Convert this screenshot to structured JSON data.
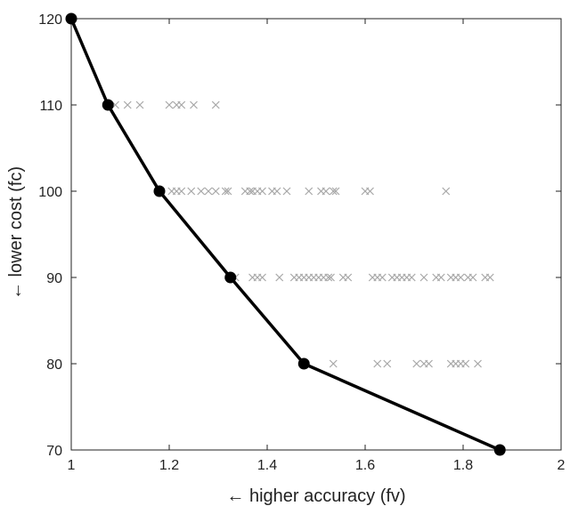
{
  "chart_data": {
    "type": "scatter",
    "title": "",
    "xlabel": "← higher accuracy (fv)",
    "ylabel": "← lower cost (fc)",
    "xlim": [
      1,
      2
    ],
    "ylim": [
      70,
      120
    ],
    "xticks": [
      1,
      1.2,
      1.4,
      1.6,
      1.8,
      2
    ],
    "xtick_labels": [
      "1",
      "1.2",
      "1.4",
      "1.6",
      "1.8",
      "2"
    ],
    "yticks": [
      70,
      80,
      90,
      100,
      110,
      120
    ],
    "ytick_labels": [
      "70",
      "80",
      "90",
      "100",
      "110",
      "120"
    ],
    "grid": false,
    "legend": "none",
    "series": [
      {
        "marker": "x",
        "color": "#a8a8a8",
        "points": [
          [
            1.09,
            110
          ],
          [
            1.115,
            110
          ],
          [
            1.14,
            110
          ],
          [
            1.2,
            110
          ],
          [
            1.215,
            110
          ],
          [
            1.225,
            110
          ],
          [
            1.25,
            110
          ],
          [
            1.295,
            110
          ],
          [
            1.205,
            100
          ],
          [
            1.215,
            100
          ],
          [
            1.225,
            100
          ],
          [
            1.245,
            100
          ],
          [
            1.265,
            100
          ],
          [
            1.28,
            100
          ],
          [
            1.295,
            100
          ],
          [
            1.315,
            100
          ],
          [
            1.32,
            100
          ],
          [
            1.355,
            100
          ],
          [
            1.365,
            100
          ],
          [
            1.37,
            100
          ],
          [
            1.38,
            100
          ],
          [
            1.39,
            100
          ],
          [
            1.41,
            100
          ],
          [
            1.42,
            100
          ],
          [
            1.44,
            100
          ],
          [
            1.485,
            100
          ],
          [
            1.51,
            100
          ],
          [
            1.52,
            100
          ],
          [
            1.535,
            100
          ],
          [
            1.54,
            100
          ],
          [
            1.6,
            100
          ],
          [
            1.61,
            100
          ],
          [
            1.765,
            100
          ],
          [
            1.335,
            90
          ],
          [
            1.37,
            90
          ],
          [
            1.38,
            90
          ],
          [
            1.39,
            90
          ],
          [
            1.425,
            90
          ],
          [
            1.455,
            90
          ],
          [
            1.465,
            90
          ],
          [
            1.475,
            90
          ],
          [
            1.485,
            90
          ],
          [
            1.495,
            90
          ],
          [
            1.505,
            90
          ],
          [
            1.515,
            90
          ],
          [
            1.525,
            90
          ],
          [
            1.53,
            90
          ],
          [
            1.555,
            90
          ],
          [
            1.565,
            90
          ],
          [
            1.615,
            90
          ],
          [
            1.625,
            90
          ],
          [
            1.635,
            90
          ],
          [
            1.655,
            90
          ],
          [
            1.665,
            90
          ],
          [
            1.675,
            90
          ],
          [
            1.685,
            90
          ],
          [
            1.695,
            90
          ],
          [
            1.72,
            90
          ],
          [
            1.745,
            90
          ],
          [
            1.755,
            90
          ],
          [
            1.775,
            90
          ],
          [
            1.785,
            90
          ],
          [
            1.795,
            90
          ],
          [
            1.81,
            90
          ],
          [
            1.82,
            90
          ],
          [
            1.845,
            90
          ],
          [
            1.855,
            90
          ],
          [
            1.535,
            80
          ],
          [
            1.625,
            80
          ],
          [
            1.645,
            80
          ],
          [
            1.705,
            80
          ],
          [
            1.72,
            80
          ],
          [
            1.73,
            80
          ],
          [
            1.775,
            80
          ],
          [
            1.785,
            80
          ],
          [
            1.795,
            80
          ],
          [
            1.805,
            80
          ],
          [
            1.83,
            80
          ]
        ]
      },
      {
        "marker": "circle",
        "color": "#000000",
        "line": true,
        "points": [
          [
            1.0,
            120
          ],
          [
            1.075,
            110
          ],
          [
            1.18,
            100
          ],
          [
            1.325,
            90
          ],
          [
            1.475,
            80
          ],
          [
            1.875,
            70
          ]
        ]
      }
    ]
  }
}
